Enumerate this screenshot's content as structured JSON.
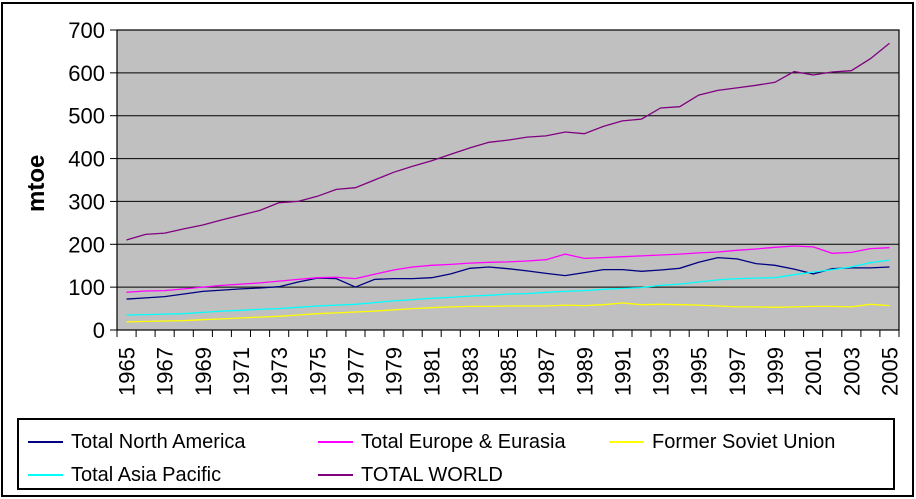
{
  "chart_data": {
    "type": "line",
    "title": "",
    "xlabel": "",
    "ylabel": "mtoe",
    "ylim": [
      0,
      700
    ],
    "ytick_interval": 100,
    "y_tick_labels": [
      "0",
      "100",
      "200",
      "300",
      "400",
      "500",
      "600",
      "700"
    ],
    "grid": true,
    "plot_background": "#c0c0c0",
    "gridline_color": "#000000",
    "legend_position": "bottom",
    "x": [
      1965,
      1966,
      1967,
      1968,
      1969,
      1970,
      1971,
      1972,
      1973,
      1974,
      1975,
      1976,
      1977,
      1978,
      1979,
      1980,
      1981,
      1982,
      1983,
      1984,
      1985,
      1986,
      1987,
      1988,
      1989,
      1990,
      1991,
      1992,
      1993,
      1994,
      1995,
      1996,
      1997,
      1998,
      1999,
      2000,
      2001,
      2002,
      2003,
      2004,
      2005
    ],
    "x_tick_labels": [
      "1965",
      "1967",
      "1969",
      "1971",
      "1973",
      "1975",
      "1977",
      "1979",
      "1981",
      "1983",
      "1985",
      "1987",
      "1989",
      "1991",
      "1993",
      "1995",
      "1997",
      "1999",
      "2001",
      "2003",
      "2005"
    ],
    "series": [
      {
        "name": "Total North America",
        "color": "#000080",
        "values": [
          72,
          75,
          78,
          84,
          90,
          93,
          96,
          98,
          101,
          112,
          121,
          120,
          100,
          118,
          120,
          120,
          122,
          131,
          144,
          147,
          143,
          138,
          132,
          127,
          134,
          141,
          141,
          137,
          140,
          144,
          158,
          169,
          166,
          155,
          151,
          142,
          131,
          143,
          145,
          145,
          147
        ]
      },
      {
        "name": "Total Europe & Eurasia",
        "color": "#FF00FF",
        "values": [
          88,
          91,
          92,
          96,
          100,
          104,
          107,
          110,
          114,
          118,
          122,
          123,
          120,
          130,
          140,
          147,
          151,
          153,
          156,
          158,
          159,
          161,
          164,
          177,
          167,
          169,
          171,
          173,
          175,
          177,
          180,
          182,
          186,
          189,
          193,
          196,
          194,
          179,
          181,
          190,
          192
        ]
      },
      {
        "name": "Former Soviet Union",
        "color": "#FFFF00",
        "values": [
          19,
          20,
          21,
          22,
          24,
          26,
          28,
          30,
          32,
          35,
          38,
          40,
          42,
          44,
          47,
          50,
          52,
          54,
          55,
          55,
          56,
          56,
          56,
          58,
          57,
          59,
          63,
          59,
          60,
          59,
          58,
          56,
          54,
          54,
          53,
          54,
          55,
          55,
          54,
          60,
          57
        ]
      },
      {
        "name": "Total Asia Pacific",
        "color": "#00FFFF",
        "values": [
          35,
          36,
          37,
          38,
          41,
          44,
          46,
          48,
          50,
          53,
          56,
          58,
          60,
          64,
          68,
          71,
          74,
          76,
          79,
          81,
          84,
          85,
          88,
          90,
          92,
          95,
          97,
          99,
          104,
          107,
          112,
          117,
          120,
          121,
          122,
          129,
          135,
          141,
          147,
          157,
          163
        ]
      },
      {
        "name": "TOTAL WORLD",
        "color": "#800080",
        "values": [
          210,
          223,
          226,
          236,
          245,
          257,
          268,
          279,
          297,
          300,
          312,
          328,
          332,
          350,
          368,
          382,
          395,
          410,
          425,
          438,
          443,
          450,
          453,
          462,
          458,
          475,
          488,
          492,
          518,
          521,
          548,
          559,
          565,
          571,
          578,
          603,
          595,
          602,
          605,
          633,
          669
        ]
      }
    ]
  },
  "colors": {
    "background": "#ffffff",
    "plot_background": "#c0c0c0",
    "border": "#000000"
  }
}
